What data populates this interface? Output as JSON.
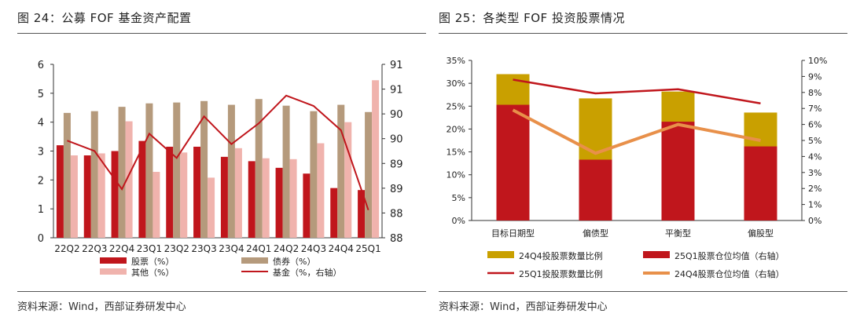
{
  "chart_data": [
    {
      "type": "bar",
      "title": "图 24：公募 FOF 基金资产配置",
      "categories": [
        "22Q2",
        "22Q3",
        "22Q4",
        "23Q1",
        "23Q2",
        "23Q3",
        "23Q4",
        "24Q1",
        "24Q2",
        "24Q3",
        "24Q4",
        "25Q1"
      ],
      "series": [
        {
          "name": "股票（%）",
          "kind": "bar",
          "axis": "left",
          "color": "#c0161c",
          "values": [
            3.2,
            2.85,
            3.0,
            3.35,
            3.15,
            3.15,
            2.8,
            2.65,
            2.42,
            2.22,
            1.72,
            1.65
          ]
        },
        {
          "name": "债券（%）",
          "kind": "bar",
          "axis": "left",
          "color": "#b59a7c",
          "values": [
            4.32,
            4.38,
            4.53,
            4.65,
            4.68,
            4.73,
            4.6,
            4.8,
            4.57,
            4.38,
            4.6,
            4.35
          ]
        },
        {
          "name": "其他（%）",
          "kind": "bar",
          "axis": "left",
          "color": "#f0b3ad",
          "values": [
            2.85,
            2.92,
            4.03,
            2.28,
            2.95,
            2.08,
            3.1,
            2.75,
            2.72,
            3.27,
            4.0,
            5.45
          ]
        },
        {
          "name": "基金（%，右轴）",
          "kind": "line",
          "axis": "right",
          "color": "#c0161c",
          "values": [
            90.3,
            90.0,
            88.9,
            90.5,
            89.8,
            91.0,
            90.2,
            90.8,
            91.6,
            91.3,
            90.6,
            88.3
          ]
        }
      ],
      "ylim_left": [
        0,
        6
      ],
      "yticks_left": [
        "0",
        "1",
        "2",
        "3",
        "4",
        "5",
        "6"
      ],
      "ylim_right": [
        87.5,
        92.5
      ],
      "yticks_right": [
        "88",
        "88",
        "89",
        "89",
        "90",
        "90",
        "91",
        "91"
      ],
      "legend": [
        "股票（%）",
        "债券（%）",
        "其他（%）",
        "基金（%，右轴）"
      ],
      "source": "资料来源：Wind，西部证券研发中心"
    },
    {
      "type": "bar",
      "title": "图 25：各类型 FOF 投资股票情况",
      "categories": [
        "目标日期型",
        "偏债型",
        "平衡型",
        "偏股型"
      ],
      "series": [
        {
          "name": "24Q4投股票数量比例",
          "kind": "bar-stack-top",
          "axis": "left",
          "color": "#c9a000",
          "values": [
            32.0,
            26.7,
            28.2,
            23.6
          ]
        },
        {
          "name": "25Q1股票仓位均值（右轴）",
          "kind": "bar-stack-base",
          "axis": "left",
          "color": "#c0161c",
          "values": [
            25.3,
            13.3,
            21.6,
            16.2
          ]
        },
        {
          "name": "25Q1投股票数量比例",
          "kind": "line",
          "axis": "left",
          "color": "#c0161c",
          "values": [
            30.8,
            27.8,
            28.7,
            25.6
          ]
        },
        {
          "name": "24Q4股票仓位均值（右轴）",
          "kind": "line",
          "axis": "right",
          "color": "#e8904a",
          "values": [
            6.9,
            4.2,
            6.0,
            5.0
          ]
        }
      ],
      "ylim_left": [
        0,
        35
      ],
      "yticks_left": [
        "0%",
        "5%",
        "10%",
        "15%",
        "20%",
        "25%",
        "30%",
        "35%"
      ],
      "ylim_right": [
        0,
        10
      ],
      "yticks_right": [
        "0%",
        "1%",
        "2%",
        "3%",
        "4%",
        "5%",
        "6%",
        "7%",
        "8%",
        "9%",
        "10%"
      ],
      "legend": [
        "24Q4投股票数量比例",
        "25Q1股票仓位均值（右轴）",
        "25Q1投股票数量比例",
        "24Q4股票仓位均值（右轴）"
      ],
      "source": "资料来源：Wind，西部证券研发中心"
    }
  ]
}
